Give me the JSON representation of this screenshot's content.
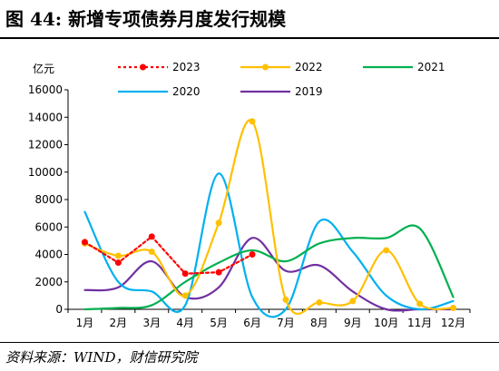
{
  "figure": {
    "title": "图 44:  新增专项债券月度发行规模",
    "source": "资料来源：WIND，财信研究院"
  },
  "chart_data": {
    "type": "line",
    "title": "",
    "xlabel": "",
    "ylabel": "亿元",
    "ylim": [
      0,
      16000
    ],
    "yticks": [
      0,
      2000,
      4000,
      6000,
      8000,
      10000,
      12000,
      14000,
      16000
    ],
    "categories": [
      "1月",
      "2月",
      "3月",
      "4月",
      "5月",
      "6月",
      "7月",
      "8月",
      "9月",
      "10月",
      "11月",
      "12月"
    ],
    "grid": false,
    "legend_position": "top",
    "series": [
      {
        "name": "2023",
        "color": "#ff0000",
        "dashed": true,
        "markers": true,
        "smooth": false,
        "values": [
          4900,
          3400,
          5300,
          2600,
          2700,
          4000,
          null,
          null,
          null,
          null,
          null,
          null
        ]
      },
      {
        "name": "2022",
        "color": "#ffc000",
        "dashed": false,
        "markers": true,
        "smooth": true,
        "values": [
          4800,
          3900,
          4200,
          1000,
          6300,
          13700,
          700,
          500,
          600,
          4300,
          400,
          100
        ]
      },
      {
        "name": "2021",
        "color": "#00b050",
        "dashed": false,
        "markers": false,
        "smooth": true,
        "values": [
          0,
          100,
          300,
          2000,
          3400,
          4300,
          3500,
          4800,
          5200,
          5200,
          5900,
          900
        ]
      },
      {
        "name": "2020",
        "color": "#00b0f0",
        "dashed": false,
        "markers": false,
        "smooth": true,
        "values": [
          7100,
          2000,
          1300,
          300,
          9900,
          900,
          0,
          6400,
          4200,
          1000,
          0,
          600
        ]
      },
      {
        "name": "2019",
        "color": "#7030a0",
        "dashed": false,
        "markers": false,
        "smooth": true,
        "values": [
          1400,
          1600,
          3500,
          900,
          1600,
          5200,
          2800,
          3200,
          1300,
          0,
          0,
          0
        ]
      }
    ]
  }
}
